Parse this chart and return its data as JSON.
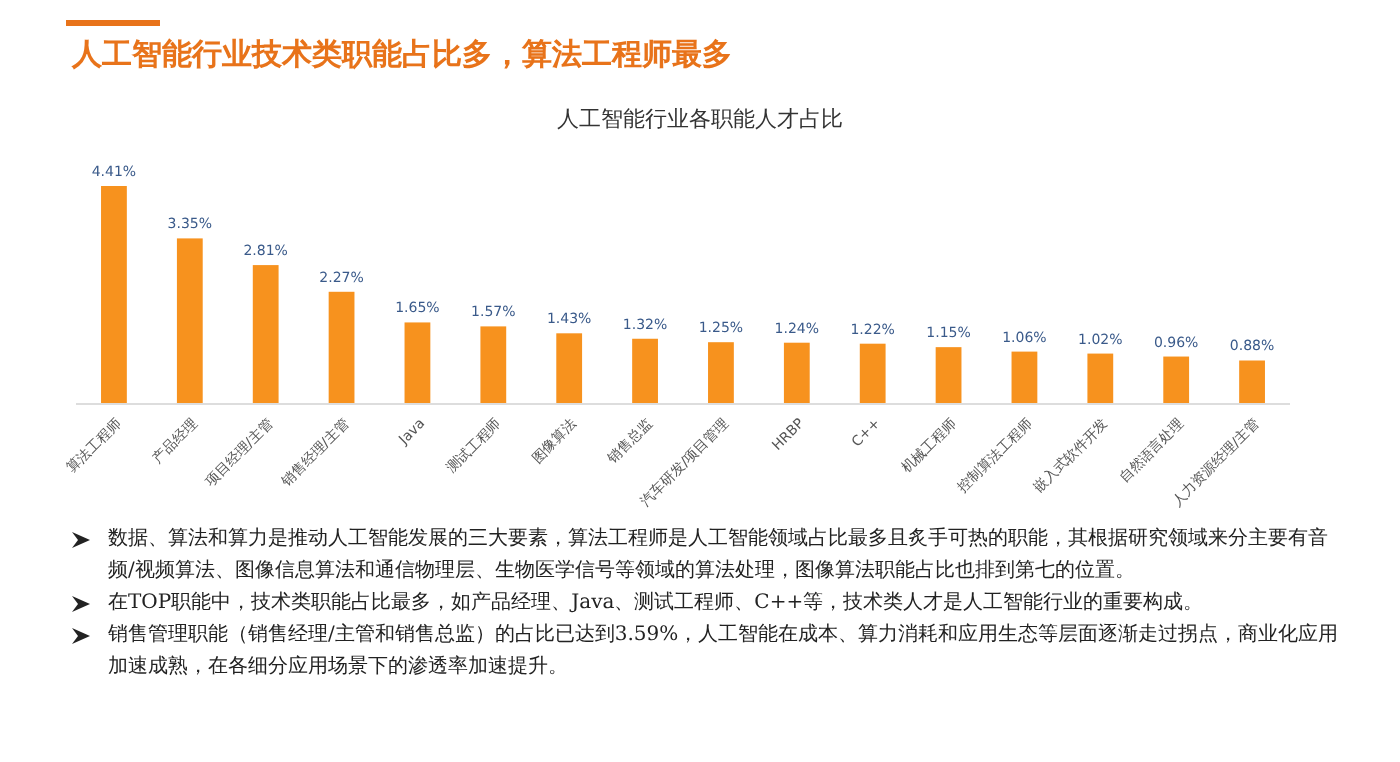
{
  "chart_data": {
    "type": "bar",
    "title": "人工智能行业技术类职能占比多，算法工程师最多",
    "subtitle": "人工智能行业各职能人才占比",
    "categories": [
      "算法工程师",
      "产品经理",
      "项目经理/主管",
      "销售经理/主管",
      "Java",
      "测试工程师",
      "图像算法",
      "销售总监",
      "汽车研发/项目管理",
      "HRBP",
      "C++",
      "机械工程师",
      "控制算法工程师",
      "嵌入式软件开发",
      "自然语言处理",
      "人力资源经理/主管"
    ],
    "color": "#f7921e",
    "values": [
      4.41,
      3.35,
      2.81,
      2.27,
      1.65,
      1.57,
      1.43,
      1.32,
      1.25,
      1.24,
      1.22,
      1.15,
      1.06,
      1.02,
      0.96,
      0.88
    ],
    "value_labels": [
      "4.41%",
      "3.35%",
      "2.81%",
      "2.27%",
      "1.65%",
      "1.57%",
      "1.43%",
      "1.32%",
      "1.25%",
      "1.24%",
      "1.22%",
      "1.15%",
      "1.06%",
      "1.02%",
      "0.96%",
      "0.88%"
    ],
    "annotations": [
      "数据、算法和算力是推动人工智能发展的三大要素，算法工程师是人工智能领域占比最多且炙手可热的职能，其根据研究领域来分主要有音频/视频算法、图像信息算法和通信物理层、生物医学信号等领域的算法处理，图像算法职能占比也排到第七的位置。",
      "在TOP职能中，技术类职能占比最多，如产品经理、Java、测试工程师、C++等，技术类人才是人工智能行业的重要构成。",
      "销售管理职能（销售经理/主管和销售总监）的占比已达到3.59%，人工智能在成本、算力消耗和应用生态等层面逐渐走过拐点，商业化应用加速成熟，在各细分应用场景下的渗透率加速提升。"
    ]
  }
}
